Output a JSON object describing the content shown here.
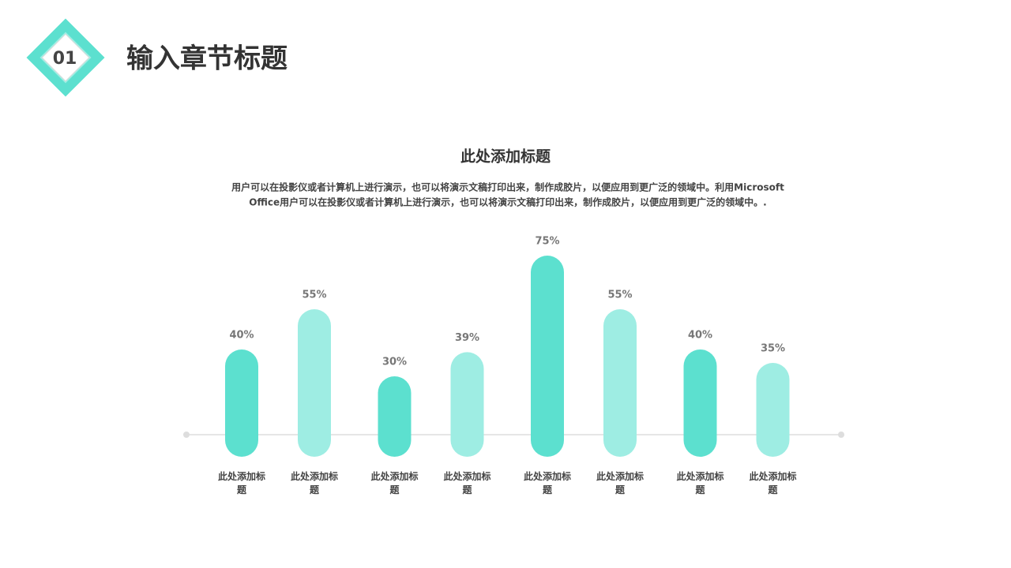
{
  "header": {
    "number": "01",
    "title": "输入章节标题"
  },
  "chart_data": {
    "type": "bar",
    "title": "此处添加标题",
    "description": [
      "用户可以在投影仪或者计算机上进行演示，也可以将演示文稿打印出来，制作成胶片，以便应用到更广泛的领域中。利用Microsoft",
      "Office用户可以在投影仪或者计算机上进行演示，也可以将演示文稿打印出来，制作成胶片，以便应用到更广泛的领域中。."
    ],
    "categories": [
      "此处添加标题",
      "此处添加标题",
      "此处添加标题",
      "此处添加标题",
      "此处添加标题",
      "此处添加标题",
      "此处添加标题",
      "此处添加标题"
    ],
    "values": [
      40,
      55,
      30,
      39,
      75,
      55,
      40,
      35
    ],
    "value_labels": [
      "40%",
      "55%",
      "30%",
      "39%",
      "75%",
      "55%",
      "40%",
      "35%"
    ],
    "colors": [
      "#5ce0cf",
      "#9eede3"
    ]
  }
}
